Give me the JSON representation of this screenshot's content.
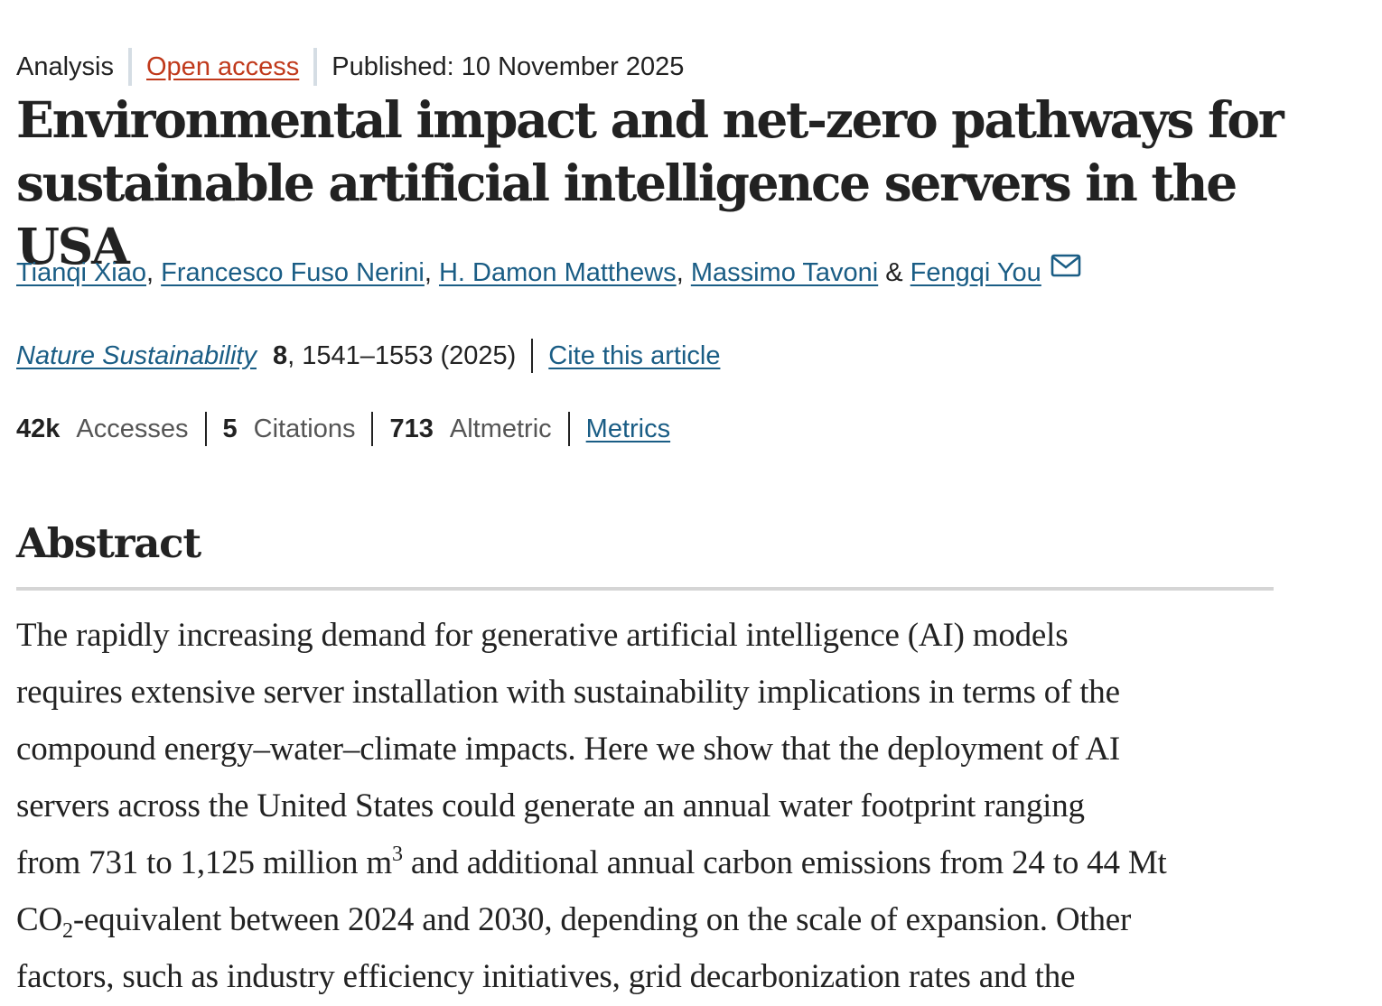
{
  "meta": {
    "article_type": "Analysis",
    "open_access": "Open access",
    "published": "Published: 10 November 2025"
  },
  "title": "Environmental impact and net-zero pathways for sustainable artificial intelligence servers in the USA",
  "authors": [
    {
      "name": "Tianqi Xiao",
      "after": ", "
    },
    {
      "name": "Francesco Fuso Nerini",
      "after": ", "
    },
    {
      "name": "H. Damon Matthews",
      "after": ", "
    },
    {
      "name": "Massimo Tavoni",
      "after": " & "
    },
    {
      "name": "Fengqi You",
      "after": ""
    }
  ],
  "icons": {
    "mail": "mail-envelope-icon"
  },
  "citation": {
    "journal": "Nature Sustainability",
    "volume": "8",
    "pages_year": ", 1541–1553 (2025)",
    "cite_link": "Cite this article"
  },
  "metrics": {
    "accesses_value": "42k",
    "accesses_label": "Accesses",
    "citations_value": "5",
    "citations_label": "Citations",
    "altmetric_value": "713",
    "altmetric_label": "Altmetric",
    "metrics_link": "Metrics"
  },
  "abstract": {
    "heading": "Abstract",
    "line1": "The rapidly increasing demand for generative artificial intelligence (AI) models",
    "line2": "requires extensive server installation with sustainability implications in terms of the",
    "line3": "compound energy–water–climate impacts. Here we show that the deployment of AI",
    "line4": "servers across the United States could generate an annual water footprint ranging",
    "line5a": "from 731 to 1,125 million m",
    "line5_sup": "3",
    "line5b": " and additional annual carbon emissions from 24 to 44 Mt",
    "line6a": "CO",
    "line6_sub": "2",
    "line6b": "-equivalent between 2024 and 2030, depending on the scale of expansion. Other",
    "line7": "factors, such as industry efficiency initiatives, grid decarbonization rates and the"
  },
  "colors": {
    "text": "#222222",
    "link": "#1a5d85",
    "open_access": "#c0391b",
    "separator": "#d5dde4",
    "rule": "#d5d5d5"
  }
}
